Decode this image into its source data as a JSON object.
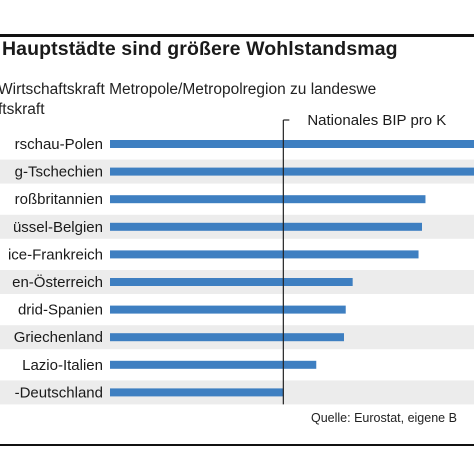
{
  "header": {
    "title": "Hauptstädte sind größere Wohlstandsmag",
    "subtitle_line1": "Wirtschaftskraft Metropole/Metropolregion zu landeswe",
    "subtitle_line2": "ftskraft"
  },
  "reference_label": "Nationales BIP pro K",
  "source": "Quelle: Eurostat, eigene B",
  "colors": {
    "bar": "#3e7fc1",
    "band": "#ececec",
    "text": "#1a1a1a",
    "reference_line": "#222222"
  },
  "chart_data": {
    "type": "bar",
    "orientation": "horizontal",
    "categories": [
      "rschau-Polen",
      "g-Tschechien",
      "roßbritannien",
      "üssel-Belgien",
      "ice-Frankreich",
      "en-Österreich",
      "drid-Spanien",
      "Griechenland",
      "Lazio-Italien",
      "-Deutschland"
    ],
    "values": [
      210,
      210,
      182,
      180,
      178,
      140,
      136,
      135,
      119,
      100
    ],
    "reference_value": 100,
    "reference_label": "Nationales BIP pro K",
    "xlim": [
      0,
      210
    ],
    "xlabel": "",
    "ylabel": "",
    "grid": false,
    "legend": "none"
  }
}
